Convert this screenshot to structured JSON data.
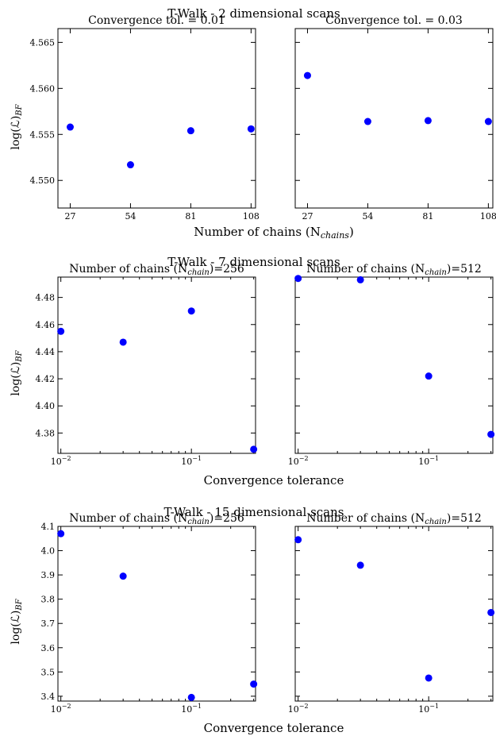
{
  "rows": [
    {
      "title": "T-Walk - 2 dimensional scans",
      "xlabel": "Number of chains (N",
      "xlabel_sub": "chains",
      "xlabel_close": ")",
      "ylabel": "log(ℒ)",
      "ylabel_sub": "BF"
    },
    {
      "title": "T-Walk - 7 dimensional scans",
      "xlabel": "Convergence tolerance",
      "ylabel": "log(ℒ)",
      "ylabel_sub": "BF"
    },
    {
      "title": "T-Walk - 15 dimensional scans",
      "xlabel": "Convergence tolerance",
      "ylabel": "log(ℒ)",
      "ylabel_sub": "BF"
    }
  ],
  "chart_data": [
    {
      "type": "scatter",
      "title": "Convergence tol. = 0.01",
      "x": [
        27,
        54,
        81,
        108
      ],
      "y": [
        4.5558,
        4.5517,
        4.5554,
        4.5556
      ],
      "xscale": "linear",
      "xlim": [
        21.5,
        110
      ],
      "ylim": [
        4.547,
        4.5665
      ],
      "xticks": [
        27,
        54,
        81,
        108
      ],
      "xticklabels": [
        "27",
        "54",
        "81",
        "108"
      ],
      "yticks": [
        4.55,
        4.555,
        4.56,
        4.565
      ],
      "yticklabels": [
        "4.550",
        "4.555",
        "4.560",
        "4.565"
      ],
      "color": "#0000ff",
      "grid": false
    },
    {
      "type": "scatter",
      "title": "Convergence tol. = 0.03",
      "x": [
        27,
        54,
        81,
        108
      ],
      "y": [
        4.5614,
        4.5564,
        4.5565,
        4.5564
      ],
      "xscale": "linear",
      "xlim": [
        21.5,
        110
      ],
      "ylim": [
        4.547,
        4.5665
      ],
      "xticks": [
        27,
        54,
        81,
        108
      ],
      "xticklabels": [
        "27",
        "54",
        "81",
        "108"
      ],
      "yticks": [],
      "yticklabels": [],
      "color": "#0000ff",
      "grid": false
    },
    {
      "type": "scatter",
      "title": "Number of chains (N",
      "title_sub": "chain",
      "title_close": ")=256",
      "x": [
        0.01,
        0.03,
        0.1,
        0.3
      ],
      "y": [
        4.455,
        4.447,
        4.47,
        4.368
      ],
      "xscale": "log",
      "xlim": [
        0.0095,
        0.31
      ],
      "ylim": [
        4.365,
        4.495
      ],
      "xticks": [
        0.01,
        0.1
      ],
      "xticklabels": [
        "10",
        "10"
      ],
      "xtick_exponents": [
        "−2",
        "−1"
      ],
      "yticks": [
        4.38,
        4.4,
        4.42,
        4.44,
        4.46,
        4.48
      ],
      "yticklabels": [
        "4.38",
        "4.40",
        "4.42",
        "4.44",
        "4.46",
        "4.48"
      ],
      "color": "#0000ff",
      "grid": false
    },
    {
      "type": "scatter",
      "title": "Number of chains (N",
      "title_sub": "chain",
      "title_close": ")=512",
      "x": [
        0.01,
        0.03,
        0.1,
        0.3
      ],
      "y": [
        4.494,
        4.493,
        4.422,
        4.379
      ],
      "xscale": "log",
      "xlim": [
        0.0095,
        0.31
      ],
      "ylim": [
        4.365,
        4.495
      ],
      "xticks": [
        0.01,
        0.1
      ],
      "xticklabels": [
        "10",
        "10"
      ],
      "xtick_exponents": [
        "−2",
        "−1"
      ],
      "yticks": [],
      "yticklabels": [],
      "color": "#0000ff",
      "grid": false
    },
    {
      "type": "scatter",
      "title": "Number of chains (N",
      "title_sub": "chain",
      "title_close": ")=256",
      "x": [
        0.01,
        0.03,
        0.1,
        0.3
      ],
      "y": [
        4.07,
        3.895,
        3.395,
        3.45
      ],
      "xscale": "log",
      "xlim": [
        0.0095,
        0.31
      ],
      "ylim": [
        3.38,
        4.1
      ],
      "xticks": [
        0.01,
        0.1
      ],
      "xticklabels": [
        "10",
        "10"
      ],
      "xtick_exponents": [
        "−2",
        "−1"
      ],
      "yticks": [
        3.4,
        3.5,
        3.6,
        3.7,
        3.8,
        3.9,
        4.0,
        4.1
      ],
      "yticklabels": [
        "3.4",
        "3.5",
        "3.6",
        "3.7",
        "3.8",
        "3.9",
        "4.0",
        "4.1"
      ],
      "color": "#0000ff",
      "grid": false
    },
    {
      "type": "scatter",
      "title": "Number of chains (N",
      "title_sub": "chain",
      "title_close": ")=512",
      "x": [
        0.01,
        0.03,
        0.1,
        0.3
      ],
      "y": [
        4.045,
        3.94,
        3.475,
        3.745
      ],
      "xscale": "log",
      "xlim": [
        0.0095,
        0.31
      ],
      "ylim": [
        3.38,
        4.1
      ],
      "xticks": [
        0.01,
        0.1
      ],
      "xticklabels": [
        "10",
        "10"
      ],
      "xtick_exponents": [
        "−2",
        "−1"
      ],
      "yticks": [],
      "yticklabels": [],
      "color": "#0000ff",
      "grid": false
    }
  ]
}
